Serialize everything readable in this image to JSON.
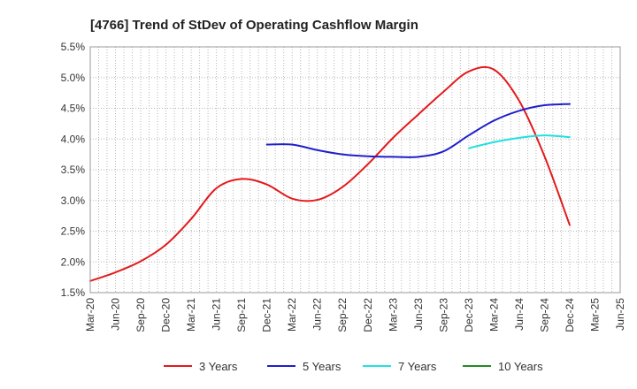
{
  "chart_data": {
    "type": "line",
    "title": "[4766]  Trend of StDev of Operating Cashflow Margin",
    "xlabel": "",
    "ylabel": "",
    "x_ticks": [
      "Mar-20",
      "Jun-20",
      "Sep-20",
      "Dec-20",
      "Mar-21",
      "Jun-21",
      "Sep-21",
      "Dec-21",
      "Mar-22",
      "Jun-22",
      "Sep-22",
      "Dec-22",
      "Mar-23",
      "Jun-23",
      "Sep-23",
      "Dec-23",
      "Mar-24",
      "Jun-24",
      "Sep-24",
      "Dec-24",
      "Mar-25",
      "Jun-25"
    ],
    "y_ticks": [
      "1.5%",
      "2.0%",
      "2.5%",
      "3.0%",
      "3.5%",
      "4.0%",
      "4.5%",
      "5.0%",
      "5.5%"
    ],
    "ylim": [
      1.5,
      5.5
    ],
    "grid": true,
    "legend_position": "bottom",
    "series": [
      {
        "name": "3 Years",
        "color": "#e31a1c",
        "points": [
          [
            "Mar-20",
            1.69
          ],
          [
            "Jun-20",
            1.83
          ],
          [
            "Sep-20",
            2.01
          ],
          [
            "Dec-20",
            2.28
          ],
          [
            "Mar-21",
            2.7
          ],
          [
            "Jun-21",
            3.2
          ],
          [
            "Sep-21",
            3.35
          ],
          [
            "Dec-21",
            3.26
          ],
          [
            "Mar-22",
            3.03
          ],
          [
            "Jun-22",
            3.01
          ],
          [
            "Sep-22",
            3.22
          ],
          [
            "Dec-22",
            3.59
          ],
          [
            "Mar-23",
            4.02
          ],
          [
            "Jun-23",
            4.4
          ],
          [
            "Sep-23",
            4.77
          ],
          [
            "Dec-23",
            5.1
          ],
          [
            "Mar-24",
            5.13
          ],
          [
            "Jun-24",
            4.62
          ],
          [
            "Sep-24",
            3.72
          ],
          [
            "Dec-24",
            2.6
          ]
        ]
      },
      {
        "name": "5 Years",
        "color": "#1f1fcc",
        "points": [
          [
            "Dec-21",
            3.91
          ],
          [
            "Mar-22",
            3.91
          ],
          [
            "Jun-22",
            3.82
          ],
          [
            "Sep-22",
            3.75
          ],
          [
            "Dec-22",
            3.72
          ],
          [
            "Mar-23",
            3.71
          ],
          [
            "Jun-23",
            3.71
          ],
          [
            "Sep-23",
            3.8
          ],
          [
            "Dec-23",
            4.06
          ],
          [
            "Mar-24",
            4.3
          ],
          [
            "Jun-24",
            4.46
          ],
          [
            "Sep-24",
            4.55
          ],
          [
            "Dec-24",
            4.57
          ]
        ]
      },
      {
        "name": "7 Years",
        "color": "#22e0e0",
        "points": [
          [
            "Dec-23",
            3.85
          ],
          [
            "Mar-24",
            3.95
          ],
          [
            "Jun-24",
            4.02
          ],
          [
            "Sep-24",
            4.06
          ],
          [
            "Dec-24",
            4.03
          ]
        ]
      },
      {
        "name": "10 Years",
        "color": "#228b22",
        "points": []
      }
    ]
  }
}
